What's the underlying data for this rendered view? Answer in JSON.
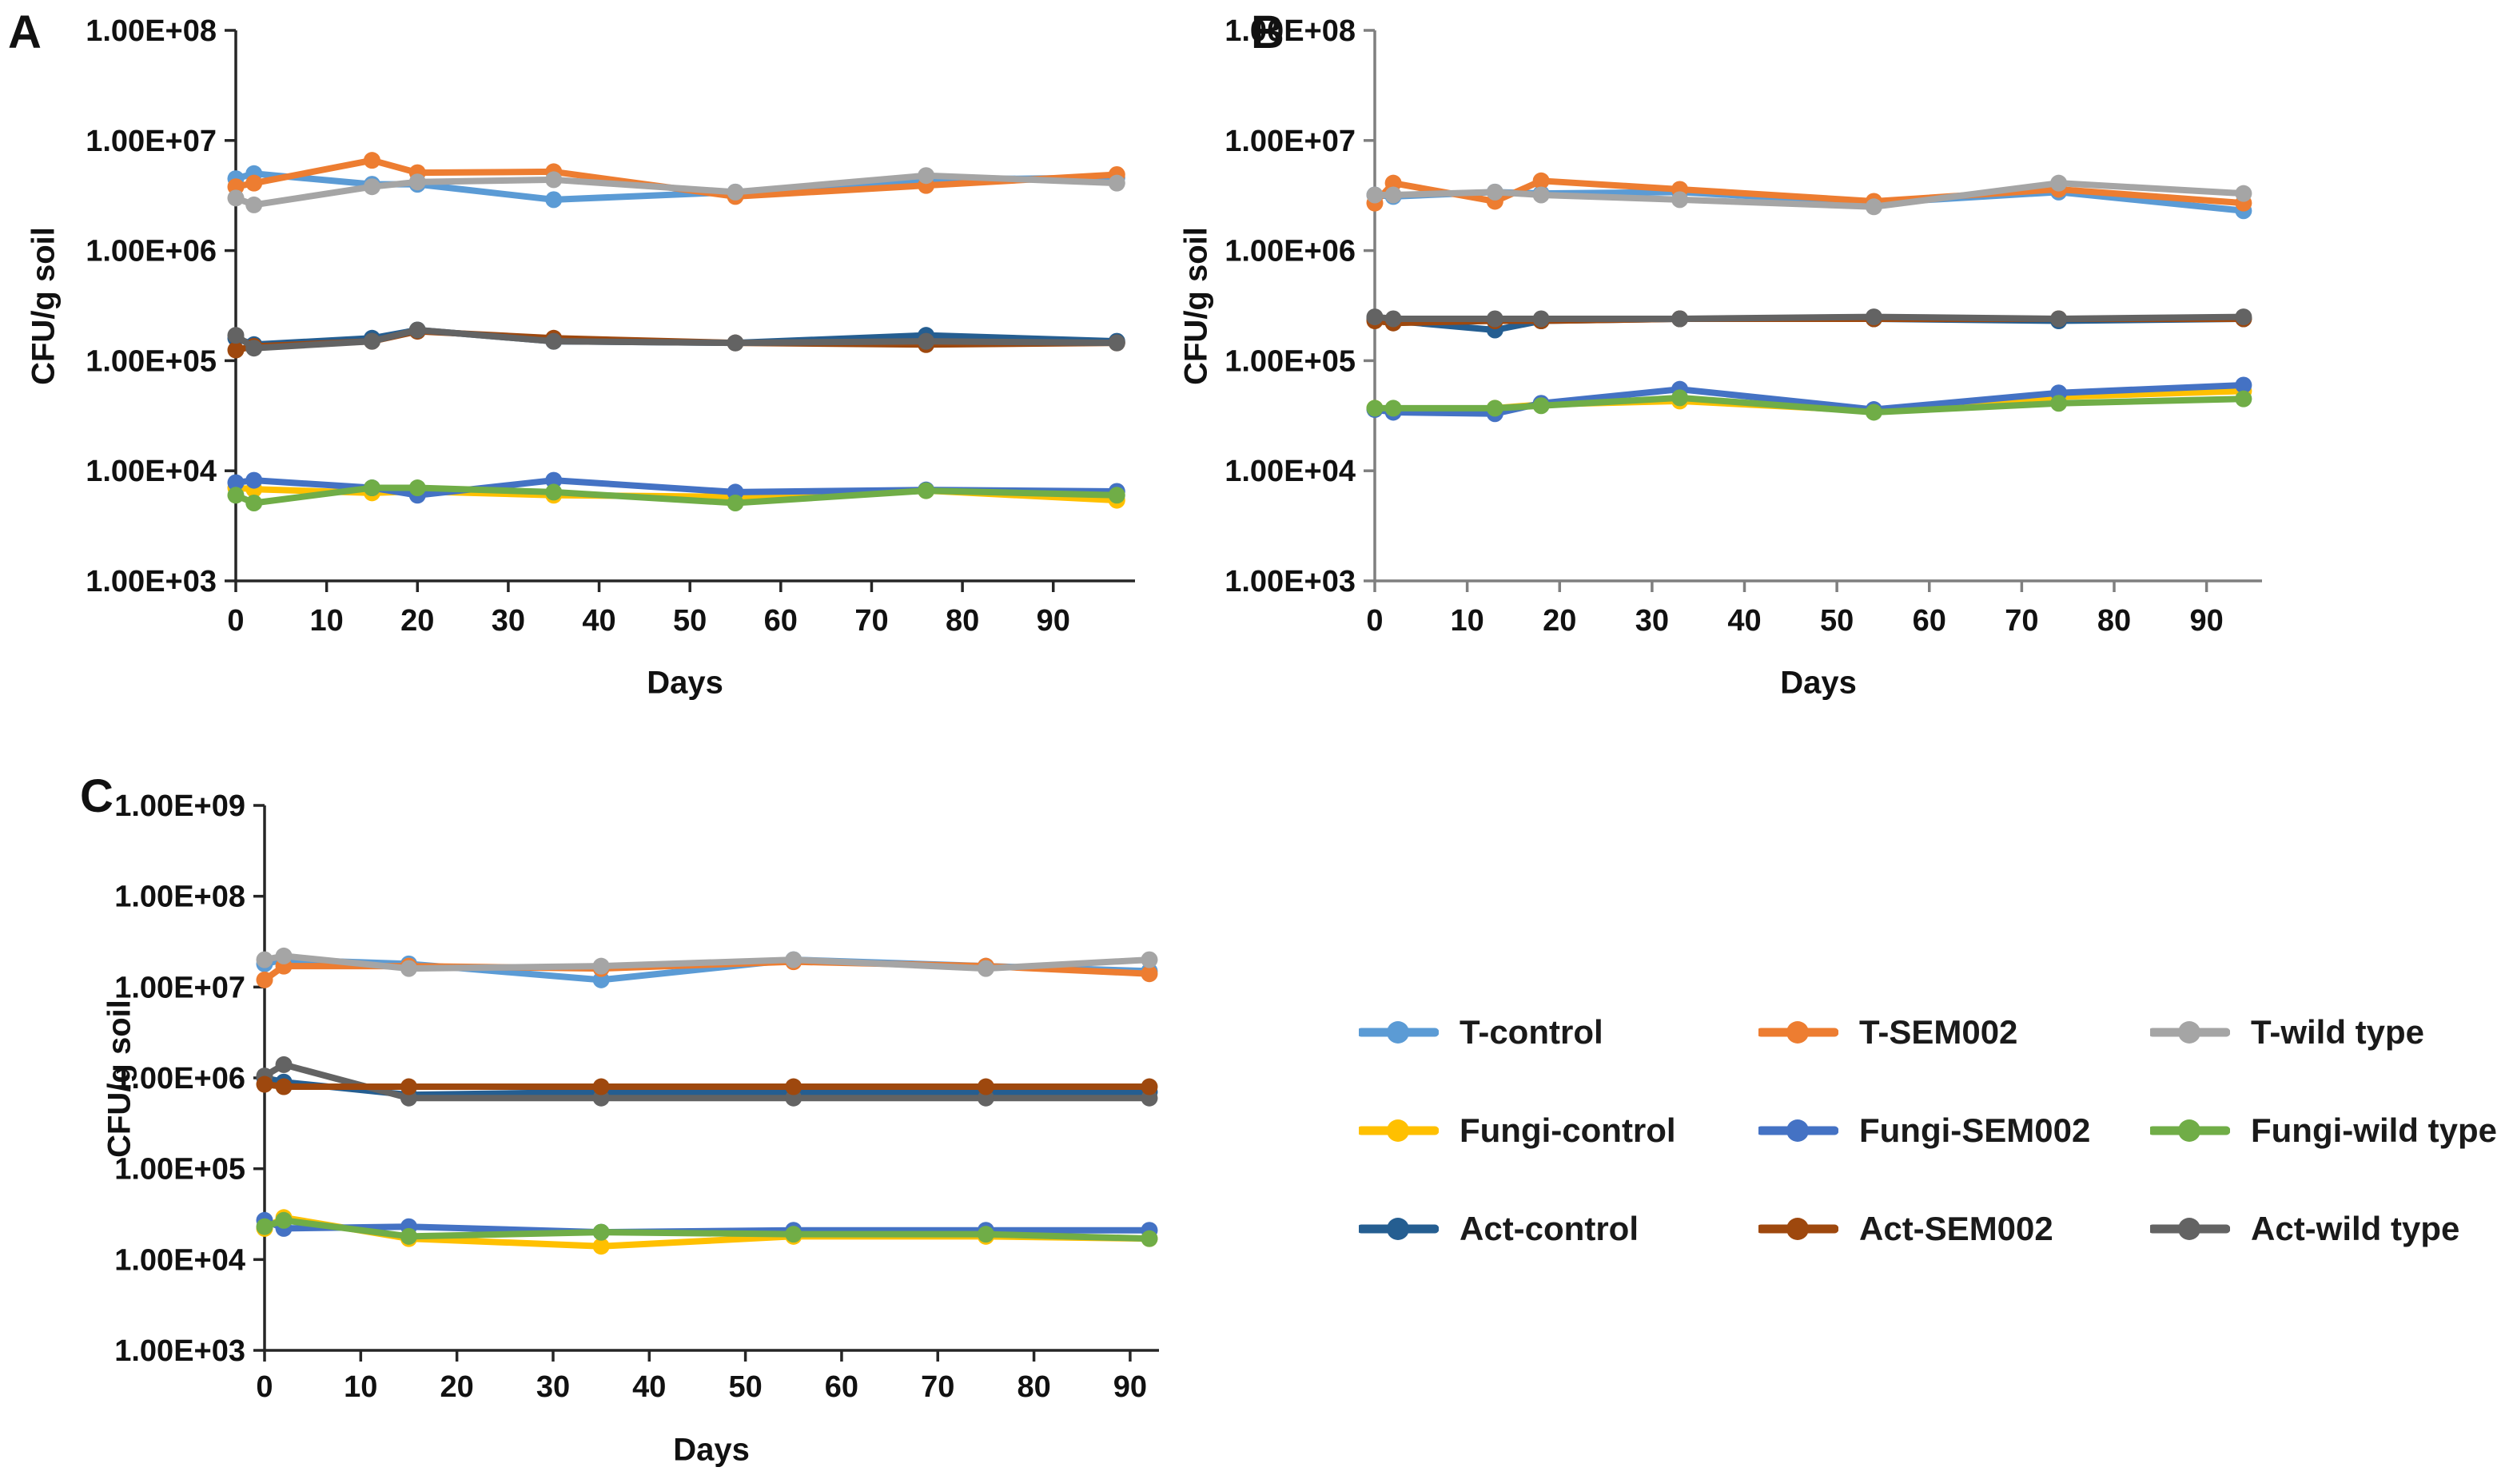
{
  "chart_data": [
    {
      "type": "line",
      "panel": "A",
      "ylabel": "CFU/g soil",
      "xlabel": "Days",
      "y_ticks": [
        "1.00E+08",
        "1.00E+07",
        "1.00E+06",
        "1.00E+05",
        "1.00E+04",
        "1.00E+03"
      ],
      "ylim_log": [
        3,
        8
      ],
      "x_ticks": [
        0,
        10,
        20,
        30,
        40,
        50,
        60,
        70,
        80,
        90
      ],
      "x_max": 99,
      "axis_color": "#262626",
      "grid": false,
      "days": [
        0,
        2,
        15,
        20,
        35,
        55,
        76,
        97
      ],
      "series": [
        {
          "name": "T-control",
          "color": "#5B9BD5",
          "values": [
            4500000.0,
            5000000.0,
            4000000.0,
            4000000.0,
            2900000.0,
            3400000.0,
            4400000.0,
            4600000.0
          ]
        },
        {
          "name": "T-SEM002",
          "color": "#ED7D31",
          "values": [
            3800000.0,
            4100000.0,
            6600000.0,
            5100000.0,
            5200000.0,
            3100000.0,
            3900000.0,
            4900000.0
          ]
        },
        {
          "name": "T-wild type",
          "color": "#A5A5A5",
          "values": [
            3000000.0,
            2600000.0,
            3800000.0,
            4200000.0,
            4400000.0,
            3400000.0,
            4800000.0,
            4100000.0
          ]
        },
        {
          "name": "Fungi-control",
          "color": "#FFC000",
          "values": [
            7000.0,
            6800.0,
            6300.0,
            6500.0,
            6000.0,
            5800.0,
            6600.0,
            5400.0
          ]
        },
        {
          "name": "Fungi-SEM002",
          "color": "#4472C4",
          "values": [
            7800.0,
            8200.0,
            7000.0,
            6000.0,
            8200.0,
            6400.0,
            6700.0,
            6500.0
          ]
        },
        {
          "name": "Fungi-wild type",
          "color": "#70AD47",
          "values": [
            6000.0,
            5100.0,
            7000.0,
            7000.0,
            6400.0,
            5100.0,
            6600.0,
            6000.0
          ]
        },
        {
          "name": "Act-control",
          "color": "#255E91",
          "values": [
            160000.0,
            140000.0,
            160000.0,
            190000.0,
            150000.0,
            145000.0,
            170000.0,
            150000.0
          ]
        },
        {
          "name": "Act-SEM002",
          "color": "#9E480E",
          "values": [
            125000.0,
            135000.0,
            150000.0,
            185000.0,
            160000.0,
            145000.0,
            140000.0,
            145000.0
          ]
        },
        {
          "name": "Act-wild type",
          "color": "#636363",
          "values": [
            170000.0,
            130000.0,
            150000.0,
            190000.0,
            150000.0,
            145000.0,
            150000.0,
            145000.0
          ]
        }
      ]
    },
    {
      "type": "line",
      "panel": "B",
      "ylabel": "CFU/g soil",
      "xlabel": "Days",
      "y_ticks": [
        "1.00E+08",
        "1.00E+07",
        "1.00E+06",
        "1.00E+05",
        "1.00E+04",
        "1.00E+03"
      ],
      "ylim_log": [
        3,
        8
      ],
      "x_ticks": [
        0,
        10,
        20,
        30,
        40,
        50,
        60,
        70,
        80,
        90
      ],
      "x_max": 96,
      "axis_color": "#7f7f7f",
      "grid": false,
      "days": [
        0,
        2,
        13,
        18,
        33,
        54,
        74,
        94
      ],
      "series": [
        {
          "name": "T-control",
          "color": "#5B9BD5",
          "values": [
            3200000.0,
            3100000.0,
            3400000.0,
            3300000.0,
            3400000.0,
            2700000.0,
            3400000.0,
            2300000.0
          ]
        },
        {
          "name": "T-SEM002",
          "color": "#ED7D31",
          "values": [
            2700000.0,
            4100000.0,
            2800000.0,
            4300000.0,
            3600000.0,
            2800000.0,
            3600000.0,
            2700000.0
          ]
        },
        {
          "name": "T-wild type",
          "color": "#A5A5A5",
          "values": [
            3200000.0,
            3200000.0,
            3400000.0,
            3200000.0,
            2900000.0,
            2500000.0,
            4100000.0,
            3300000.0
          ]
        },
        {
          "name": "Fungi-control",
          "color": "#FFC000",
          "values": [
            37000.0,
            36000.0,
            37000.0,
            40000.0,
            43000.0,
            35000.0,
            47000.0,
            53000.0
          ]
        },
        {
          "name": "Fungi-SEM002",
          "color": "#4472C4",
          "values": [
            36000.0,
            34000.0,
            33000.0,
            41000.0,
            55000.0,
            36000.0,
            51000.0,
            60000.0
          ]
        },
        {
          "name": "Fungi-wild type",
          "color": "#70AD47",
          "values": [
            37000.0,
            37000.0,
            37000.0,
            39000.0,
            46000.0,
            34000.0,
            41000.0,
            45000.0
          ]
        },
        {
          "name": "Act-control",
          "color": "#255E91",
          "values": [
            240000.0,
            230000.0,
            190000.0,
            230000.0,
            240000.0,
            240000.0,
            230000.0,
            240000.0
          ]
        },
        {
          "name": "Act-SEM002",
          "color": "#9E480E",
          "values": [
            230000.0,
            220000.0,
            230000.0,
            230000.0,
            240000.0,
            240000.0,
            240000.0,
            240000.0
          ]
        },
        {
          "name": "Act-wild type",
          "color": "#636363",
          "values": [
            250000.0,
            240000.0,
            240000.0,
            240000.0,
            240000.0,
            250000.0,
            240000.0,
            250000.0
          ]
        }
      ]
    },
    {
      "type": "line",
      "panel": "C",
      "ylabel": "CFU/g soil",
      "xlabel": "Days",
      "y_ticks": [
        "1.00E+09",
        "1.00E+08",
        "1.00E+07",
        "1.00E+06",
        "1.00E+05",
        "1.00E+04",
        "1.00E+03"
      ],
      "ylim_log": [
        3,
        9
      ],
      "x_ticks": [
        0,
        10,
        20,
        30,
        40,
        50,
        60,
        70,
        80,
        90
      ],
      "x_max": 93,
      "axis_color": "#262626",
      "grid": false,
      "days": [
        0,
        2,
        15,
        35,
        55,
        75,
        92
      ],
      "series": [
        {
          "name": "T-control",
          "color": "#5B9BD5",
          "values": [
            18000000.0,
            20000000.0,
            18000000.0,
            12000000.0,
            20000000.0,
            17000000.0,
            15000000.0
          ]
        },
        {
          "name": "T-SEM002",
          "color": "#ED7D31",
          "values": [
            12000000.0,
            17000000.0,
            17000000.0,
            16000000.0,
            19000000.0,
            17000000.0,
            14000000.0
          ]
        },
        {
          "name": "T-wild type",
          "color": "#A5A5A5",
          "values": [
            20000000.0,
            22000000.0,
            16000000.0,
            17000000.0,
            20000000.0,
            16000000.0,
            20000000.0
          ]
        },
        {
          "name": "Fungi-control",
          "color": "#FFC000",
          "values": [
            22000.0,
            29000.0,
            17000.0,
            14000.0,
            18000.0,
            18000.0,
            17000.0
          ]
        },
        {
          "name": "Fungi-SEM002",
          "color": "#4472C4",
          "values": [
            27000.0,
            22000.0,
            23000.0,
            20000.0,
            21000.0,
            21000.0,
            21000.0
          ]
        },
        {
          "name": "Fungi-wild type",
          "color": "#70AD47",
          "values": [
            23000.0,
            27000.0,
            18000.0,
            20000.0,
            19000.0,
            19000.0,
            17000.0
          ]
        },
        {
          "name": "Act-control",
          "color": "#255E91",
          "values": [
            1000000.0,
            900000.0,
            650000.0,
            700000.0,
            700000.0,
            700000.0,
            700000.0
          ]
        },
        {
          "name": "Act-wild type",
          "color": "#636363",
          "values": [
            1050000.0,
            1400000.0,
            600000.0,
            600000.0,
            600000.0,
            600000.0,
            600000.0
          ]
        },
        {
          "name": "Act-SEM002",
          "color": "#9E480E",
          "values": [
            850000.0,
            800000.0,
            800000.0,
            800000.0,
            800000.0,
            800000.0,
            800000.0
          ]
        }
      ]
    }
  ],
  "legend": {
    "position": "bottom-right",
    "items": [
      {
        "label": "T-control",
        "color": "#5B9BD5"
      },
      {
        "label": "T-SEM002",
        "color": "#ED7D31"
      },
      {
        "label": "T-wild type",
        "color": "#A5A5A5"
      },
      {
        "label": "Fungi-control",
        "color": "#FFC000"
      },
      {
        "label": "Fungi-SEM002",
        "color": "#4472C4"
      },
      {
        "label": "Fungi-wild type",
        "color": "#70AD47"
      },
      {
        "label": "Act-control",
        "color": "#255E91"
      },
      {
        "label": "Act-SEM002",
        "color": "#9E480E"
      },
      {
        "label": "Act-wild type",
        "color": "#636363"
      }
    ]
  }
}
